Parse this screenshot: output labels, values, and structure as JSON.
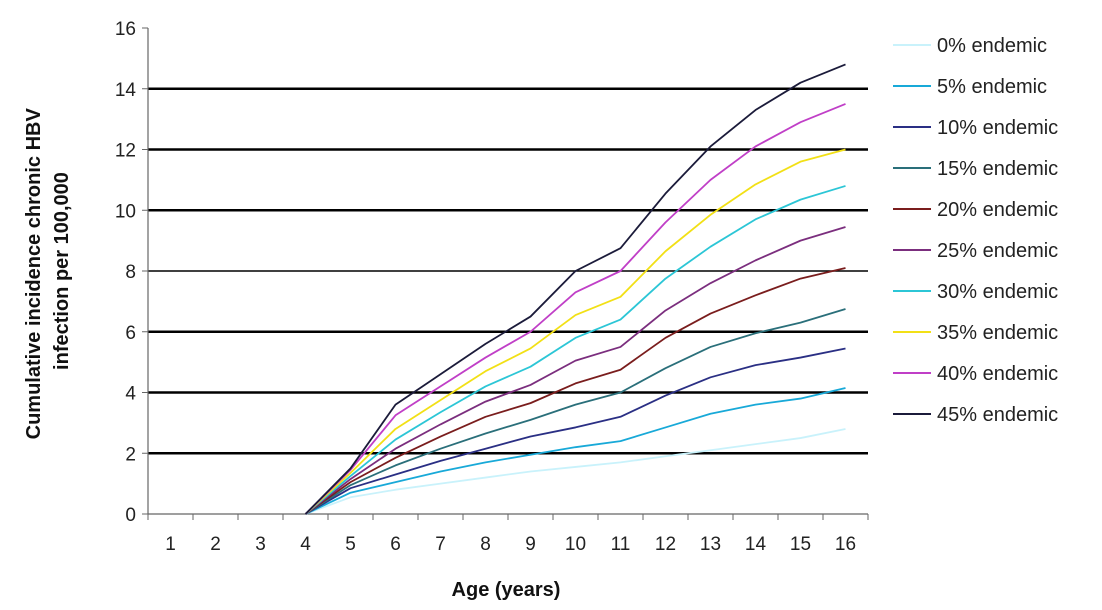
{
  "chart_data": {
    "type": "line",
    "title": "",
    "xlabel": "Age (years)",
    "ylabel_lines": [
      "Cumulative incidence chronic HBV",
      "infection per 100,000"
    ],
    "x": [
      1,
      2,
      3,
      4,
      5,
      6,
      7,
      8,
      9,
      10,
      11,
      12,
      13,
      14,
      15,
      16
    ],
    "xlim": [
      0.5,
      16.5
    ],
    "ylim": [
      0,
      16
    ],
    "yticks": [
      0,
      2,
      4,
      6,
      8,
      10,
      12,
      14,
      16
    ],
    "gridlines": [
      2,
      4,
      6,
      8,
      10,
      12,
      14
    ],
    "legend_position": "right",
    "series": [
      {
        "name": "0% endemic",
        "color": "#c9f2fb",
        "values": [
          0,
          0,
          0,
          0,
          0.55,
          0.8,
          1.0,
          1.2,
          1.4,
          1.55,
          1.7,
          1.9,
          2.1,
          2.3,
          2.5,
          2.8
        ]
      },
      {
        "name": "5% endemic",
        "color": "#18a9d8",
        "values": [
          0,
          0,
          0,
          0,
          0.7,
          1.05,
          1.4,
          1.7,
          1.95,
          2.2,
          2.4,
          2.85,
          3.3,
          3.6,
          3.8,
          4.15
        ]
      },
      {
        "name": "10% endemic",
        "color": "#2a2f84",
        "values": [
          0,
          0,
          0,
          0,
          0.85,
          1.3,
          1.75,
          2.15,
          2.55,
          2.85,
          3.2,
          3.9,
          4.5,
          4.9,
          5.15,
          5.45
        ]
      },
      {
        "name": "15% endemic",
        "color": "#2a6f7a",
        "values": [
          0,
          0,
          0,
          0,
          0.95,
          1.6,
          2.15,
          2.65,
          3.1,
          3.6,
          4.0,
          4.8,
          5.5,
          5.95,
          6.3,
          6.75
        ]
      },
      {
        "name": "20% endemic",
        "color": "#7a1d1d",
        "values": [
          0,
          0,
          0,
          0,
          1.05,
          1.85,
          2.55,
          3.2,
          3.65,
          4.3,
          4.75,
          5.8,
          6.6,
          7.2,
          7.75,
          8.1
        ]
      },
      {
        "name": "25% endemic",
        "color": "#7b2e7e",
        "values": [
          0,
          0,
          0,
          0,
          1.15,
          2.15,
          2.95,
          3.7,
          4.25,
          5.05,
          5.5,
          6.7,
          7.6,
          8.35,
          9.0,
          9.45
        ]
      },
      {
        "name": "30% endemic",
        "color": "#2cc6d6",
        "values": [
          0,
          0,
          0,
          0,
          1.25,
          2.45,
          3.35,
          4.2,
          4.85,
          5.8,
          6.4,
          7.75,
          8.8,
          9.7,
          10.35,
          10.8
        ]
      },
      {
        "name": "35% endemic",
        "color": "#f2e016",
        "values": [
          0,
          0,
          0,
          0,
          1.35,
          2.8,
          3.75,
          4.7,
          5.45,
          6.55,
          7.15,
          8.65,
          9.85,
          10.85,
          11.6,
          12.0
        ]
      },
      {
        "name": "40% endemic",
        "color": "#c03fc7",
        "values": [
          0,
          0,
          0,
          0,
          1.45,
          3.25,
          4.2,
          5.15,
          6.0,
          7.3,
          8.0,
          9.6,
          11.0,
          12.1,
          12.9,
          13.5
        ]
      },
      {
        "name": "45% endemic",
        "color": "#1b1b3a",
        "values": [
          0,
          0,
          0,
          0,
          1.5,
          3.6,
          4.6,
          5.6,
          6.5,
          8.0,
          8.75,
          10.55,
          12.1,
          13.3,
          14.2,
          14.8
        ]
      }
    ]
  }
}
